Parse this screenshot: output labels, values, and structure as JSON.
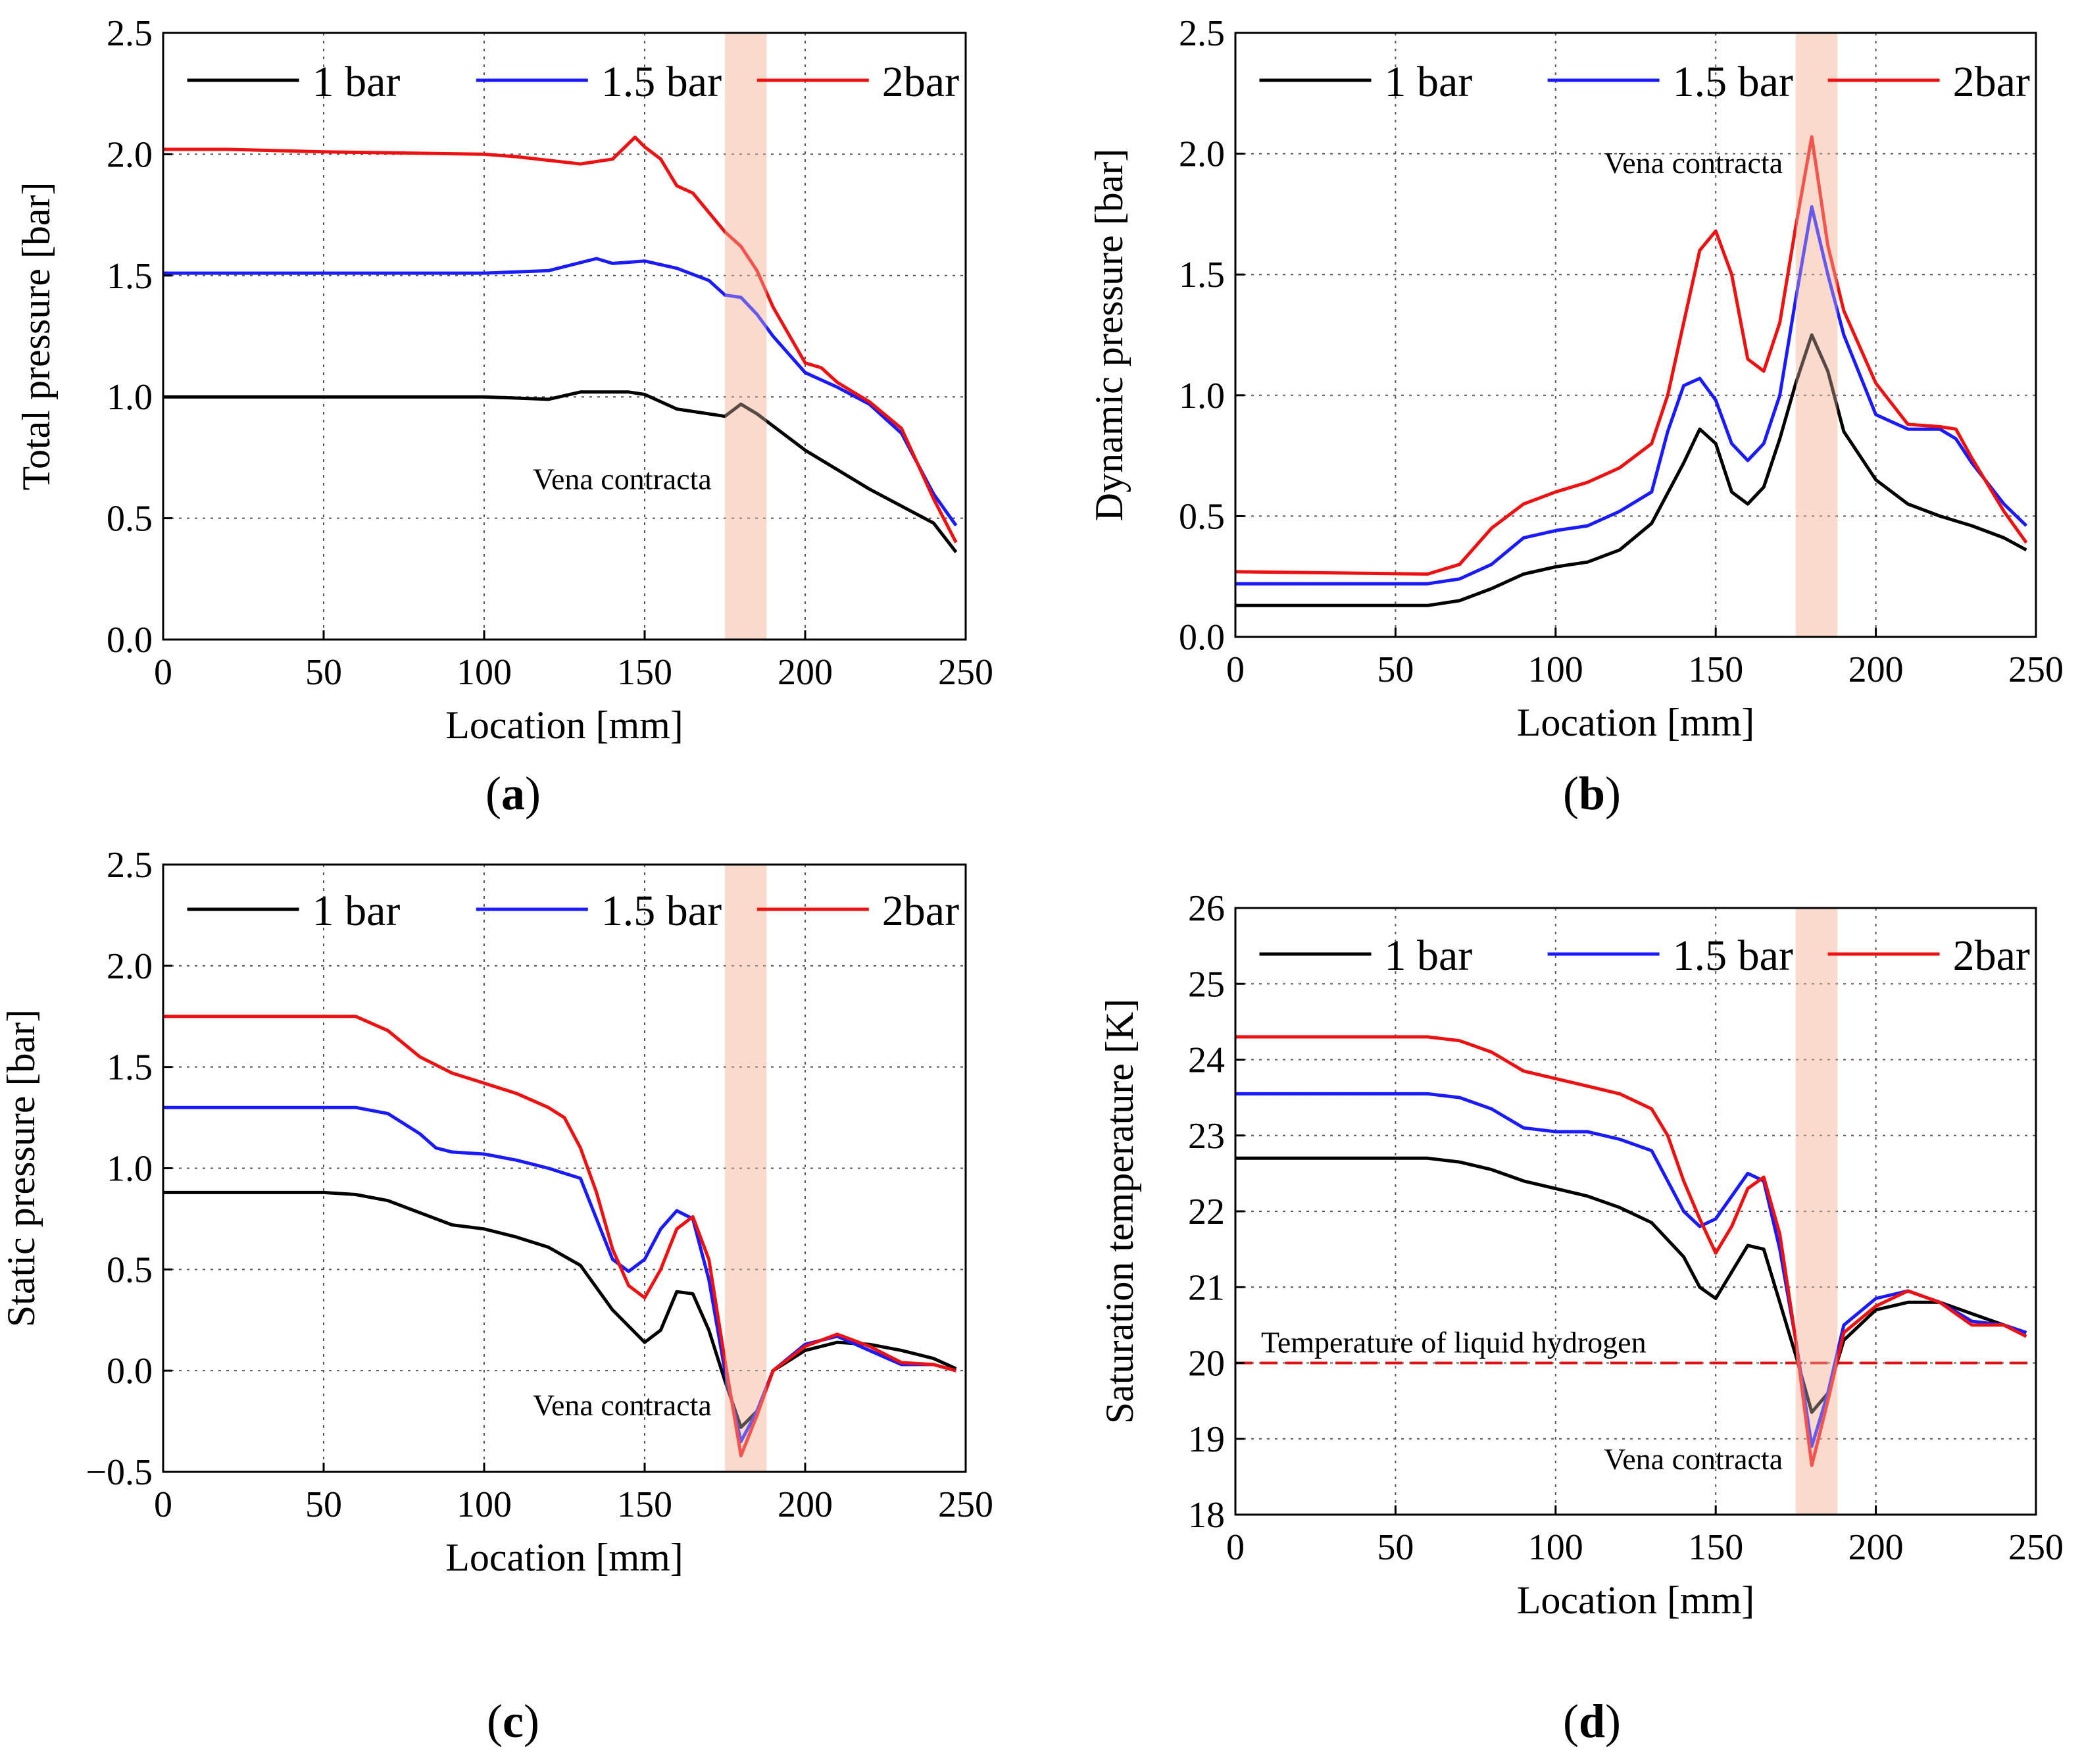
{
  "figure": {
    "label_a": "a",
    "label_b": "b",
    "label_c": "c",
    "label_d": "d",
    "legend": [
      "1 bar",
      "1.5 bar",
      "2bar"
    ],
    "series_colors": [
      "#000000",
      "#1a1aff",
      "#ee1111"
    ],
    "highlight_color": "#f8d3c2",
    "reference_line_color": "#dd1111"
  },
  "chart_data": [
    {
      "id": "a",
      "type": "line",
      "title": "",
      "xlabel": "Location [mm]",
      "ylabel": "Total pressure [bar]",
      "xlim": [
        0,
        250
      ],
      "ylim": [
        0.0,
        2.5
      ],
      "xticks": [
        0,
        50,
        100,
        150,
        200,
        250
      ],
      "xtick_labels": [
        "0",
        "50",
        "100",
        "150",
        "200",
        "250"
      ],
      "yticks": [
        0.0,
        0.5,
        1.0,
        1.5,
        2.0,
        2.5
      ],
      "ytick_labels": [
        "0.0",
        "0.5",
        "1.0",
        "1.5",
        "2.0",
        "2.5"
      ],
      "grid": true,
      "legend_position": "top",
      "highlight_band": [
        175,
        188
      ],
      "annotations": [
        {
          "text": "Vena contracta",
          "x": 143,
          "y": 0.62
        }
      ],
      "series": [
        {
          "name": "1 bar",
          "x": [
            0,
            50,
            100,
            120,
            130,
            145,
            150,
            160,
            175,
            180,
            185,
            200,
            220,
            240,
            247
          ],
          "y": [
            1.0,
            1.0,
            1.0,
            0.99,
            1.02,
            1.02,
            1.01,
            0.95,
            0.92,
            0.97,
            0.93,
            0.78,
            0.62,
            0.48,
            0.36
          ]
        },
        {
          "name": "1.5 bar",
          "x": [
            0,
            50,
            100,
            120,
            135,
            140,
            150,
            160,
            170,
            175,
            180,
            185,
            190,
            200,
            210,
            220,
            230,
            240,
            247
          ],
          "y": [
            1.51,
            1.51,
            1.51,
            1.52,
            1.57,
            1.55,
            1.56,
            1.53,
            1.48,
            1.42,
            1.41,
            1.34,
            1.25,
            1.1,
            1.04,
            0.97,
            0.85,
            0.6,
            0.47
          ]
        },
        {
          "name": "2bar",
          "x": [
            0,
            20,
            50,
            100,
            110,
            130,
            140,
            147,
            150,
            155,
            160,
            165,
            170,
            175,
            180,
            185,
            190,
            200,
            205,
            210,
            220,
            230,
            240,
            247
          ],
          "y": [
            2.02,
            2.02,
            2.01,
            2.0,
            1.99,
            1.96,
            1.98,
            2.07,
            2.03,
            1.98,
            1.87,
            1.84,
            1.76,
            1.68,
            1.62,
            1.52,
            1.37,
            1.14,
            1.12,
            1.06,
            0.98,
            0.87,
            0.58,
            0.4
          ]
        }
      ]
    },
    {
      "id": "b",
      "type": "line",
      "title": "",
      "xlabel": "Location [mm]",
      "ylabel": "Dynamic pressure [bar]",
      "xlim": [
        0,
        250
      ],
      "ylim": [
        0.0,
        2.5
      ],
      "xticks": [
        0,
        50,
        100,
        150,
        200,
        250
      ],
      "xtick_labels": [
        "0",
        "50",
        "100",
        "150",
        "200",
        "250"
      ],
      "yticks": [
        0.0,
        0.5,
        1.0,
        1.5,
        2.0,
        2.5
      ],
      "ytick_labels": [
        "0.0",
        "0.5",
        "1.0",
        "1.5",
        "2.0",
        "2.5"
      ],
      "grid": true,
      "legend_position": "top",
      "highlight_band": [
        175,
        188
      ],
      "annotations": [
        {
          "text": "Vena contracta",
          "x": 143,
          "y": 1.92
        }
      ],
      "series": [
        {
          "name": "1 bar",
          "x": [
            0,
            60,
            70,
            80,
            90,
            100,
            110,
            120,
            130,
            140,
            145,
            150,
            155,
            160,
            165,
            170,
            175,
            180,
            185,
            190,
            200,
            210,
            220,
            230,
            240,
            247
          ],
          "y": [
            0.13,
            0.13,
            0.15,
            0.2,
            0.26,
            0.29,
            0.31,
            0.36,
            0.47,
            0.72,
            0.86,
            0.8,
            0.6,
            0.55,
            0.62,
            0.82,
            1.05,
            1.25,
            1.1,
            0.85,
            0.65,
            0.55,
            0.5,
            0.46,
            0.41,
            0.36
          ]
        },
        {
          "name": "1.5 bar",
          "x": [
            0,
            60,
            70,
            80,
            90,
            100,
            110,
            120,
            130,
            135,
            140,
            145,
            150,
            155,
            160,
            165,
            170,
            175,
            180,
            185,
            190,
            200,
            210,
            220,
            225,
            230,
            240,
            247
          ],
          "y": [
            0.22,
            0.22,
            0.24,
            0.3,
            0.41,
            0.44,
            0.46,
            0.52,
            0.6,
            0.85,
            1.04,
            1.07,
            0.98,
            0.8,
            0.73,
            0.8,
            1.0,
            1.4,
            1.78,
            1.5,
            1.25,
            0.92,
            0.86,
            0.86,
            0.82,
            0.72,
            0.55,
            0.46
          ]
        },
        {
          "name": "2bar",
          "x": [
            0,
            60,
            70,
            80,
            90,
            100,
            110,
            120,
            130,
            135,
            140,
            145,
            150,
            155,
            160,
            165,
            170,
            175,
            180,
            185,
            190,
            200,
            210,
            220,
            225,
            230,
            240,
            247
          ],
          "y": [
            0.27,
            0.26,
            0.3,
            0.45,
            0.55,
            0.6,
            0.64,
            0.7,
            0.8,
            1.0,
            1.3,
            1.6,
            1.68,
            1.5,
            1.15,
            1.1,
            1.3,
            1.7,
            2.07,
            1.62,
            1.35,
            1.05,
            0.88,
            0.87,
            0.86,
            0.74,
            0.52,
            0.39
          ]
        }
      ]
    },
    {
      "id": "c",
      "type": "line",
      "title": "",
      "xlabel": "Location [mm]",
      "ylabel": "Static pressure [bar]",
      "xlim": [
        0,
        250
      ],
      "ylim": [
        -0.5,
        2.5
      ],
      "xticks": [
        0,
        50,
        100,
        150,
        200,
        250
      ],
      "xtick_labels": [
        "0",
        "50",
        "100",
        "150",
        "200",
        "250"
      ],
      "yticks": [
        -0.5,
        0.0,
        0.5,
        1.0,
        1.5,
        2.0,
        2.5
      ],
      "ytick_labels": [
        "−0.5",
        "0.0",
        "0.5",
        "1.0",
        "1.5",
        "2.0",
        "2.5"
      ],
      "grid": true,
      "legend_position": "top",
      "highlight_band": [
        175,
        188
      ],
      "annotations": [
        {
          "text": "Vena contracta",
          "x": 143,
          "y": -0.22
        }
      ],
      "series": [
        {
          "name": "1 bar",
          "x": [
            0,
            50,
            60,
            70,
            80,
            90,
            100,
            110,
            120,
            130,
            140,
            150,
            155,
            160,
            165,
            170,
            175,
            180,
            185,
            190,
            200,
            210,
            220,
            230,
            240,
            247
          ],
          "y": [
            0.88,
            0.88,
            0.87,
            0.84,
            0.78,
            0.72,
            0.7,
            0.66,
            0.61,
            0.52,
            0.3,
            0.14,
            0.2,
            0.39,
            0.38,
            0.2,
            -0.05,
            -0.28,
            -0.2,
            0.0,
            0.1,
            0.14,
            0.13,
            0.1,
            0.06,
            0.01
          ]
        },
        {
          "name": "1.5 bar",
          "x": [
            0,
            50,
            60,
            70,
            80,
            85,
            90,
            100,
            110,
            120,
            130,
            135,
            140,
            145,
            150,
            155,
            160,
            165,
            170,
            175,
            180,
            185,
            190,
            200,
            210,
            220,
            230,
            240,
            247
          ],
          "y": [
            1.3,
            1.3,
            1.3,
            1.27,
            1.17,
            1.1,
            1.08,
            1.07,
            1.04,
            1.0,
            0.95,
            0.75,
            0.55,
            0.49,
            0.55,
            0.7,
            0.79,
            0.75,
            0.45,
            0.0,
            -0.35,
            -0.2,
            0.0,
            0.13,
            0.17,
            0.1,
            0.03,
            0.03,
            0.0
          ]
        },
        {
          "name": "2bar",
          "x": [
            0,
            50,
            60,
            70,
            80,
            90,
            100,
            110,
            120,
            125,
            130,
            135,
            140,
            145,
            150,
            155,
            160,
            165,
            170,
            175,
            180,
            185,
            190,
            200,
            210,
            220,
            230,
            240,
            247
          ],
          "y": [
            1.75,
            1.75,
            1.75,
            1.68,
            1.55,
            1.47,
            1.42,
            1.37,
            1.3,
            1.25,
            1.1,
            0.88,
            0.6,
            0.42,
            0.36,
            0.5,
            0.7,
            0.76,
            0.55,
            0.05,
            -0.42,
            -0.22,
            0.0,
            0.12,
            0.18,
            0.12,
            0.04,
            0.03,
            0.0
          ]
        }
      ]
    },
    {
      "id": "d",
      "type": "line",
      "title": "",
      "xlabel": "Location [mm]",
      "ylabel": "Saturation temperature [K]",
      "xlim": [
        0,
        250
      ],
      "ylim": [
        18,
        26
      ],
      "xticks": [
        0,
        50,
        100,
        150,
        200,
        250
      ],
      "xtick_labels": [
        "0",
        "50",
        "100",
        "150",
        "200",
        "250"
      ],
      "yticks": [
        18,
        19,
        20,
        21,
        22,
        23,
        24,
        25,
        26
      ],
      "ytick_labels": [
        "18",
        "19",
        "20",
        "21",
        "22",
        "23",
        "24",
        "25",
        "26"
      ],
      "grid": true,
      "legend_position": "top",
      "highlight_band": [
        175,
        188
      ],
      "reference_line": {
        "y": 20,
        "label": "Temperature of liquid hydrogen"
      },
      "annotations": [
        {
          "text": "Vena contracta",
          "x": 143,
          "y": 18.6
        }
      ],
      "series": [
        {
          "name": "1 bar",
          "x": [
            0,
            50,
            60,
            70,
            80,
            90,
            100,
            110,
            120,
            130,
            140,
            145,
            150,
            155,
            160,
            165,
            170,
            175,
            180,
            185,
            190,
            200,
            210,
            220,
            230,
            240,
            247
          ],
          "y": [
            22.7,
            22.7,
            22.7,
            22.65,
            22.55,
            22.4,
            22.3,
            22.2,
            22.05,
            21.85,
            21.4,
            21.0,
            20.85,
            21.2,
            21.55,
            21.5,
            20.8,
            20.1,
            19.35,
            19.6,
            20.3,
            20.7,
            20.8,
            20.8,
            20.65,
            20.5,
            20.4
          ]
        },
        {
          "name": "1.5 bar",
          "x": [
            0,
            50,
            60,
            70,
            80,
            90,
            100,
            110,
            120,
            130,
            135,
            140,
            145,
            150,
            155,
            160,
            165,
            170,
            175,
            180,
            185,
            190,
            200,
            210,
            220,
            230,
            240,
            247
          ],
          "y": [
            23.55,
            23.55,
            23.55,
            23.5,
            23.35,
            23.1,
            23.05,
            23.05,
            22.95,
            22.8,
            22.4,
            22.0,
            21.8,
            21.9,
            22.2,
            22.5,
            22.4,
            21.5,
            20.3,
            18.9,
            19.6,
            20.5,
            20.85,
            20.95,
            20.8,
            20.55,
            20.5,
            20.4
          ]
        },
        {
          "name": "2bar",
          "x": [
            0,
            50,
            60,
            70,
            80,
            90,
            100,
            110,
            120,
            130,
            135,
            140,
            145,
            150,
            155,
            160,
            165,
            170,
            175,
            180,
            185,
            190,
            200,
            210,
            220,
            230,
            240,
            247
          ],
          "y": [
            24.3,
            24.3,
            24.3,
            24.25,
            24.1,
            23.85,
            23.75,
            23.65,
            23.55,
            23.35,
            23.0,
            22.4,
            21.9,
            21.45,
            21.8,
            22.3,
            22.45,
            21.7,
            20.3,
            18.65,
            19.5,
            20.4,
            20.75,
            20.95,
            20.8,
            20.5,
            20.5,
            20.35
          ]
        }
      ]
    }
  ]
}
